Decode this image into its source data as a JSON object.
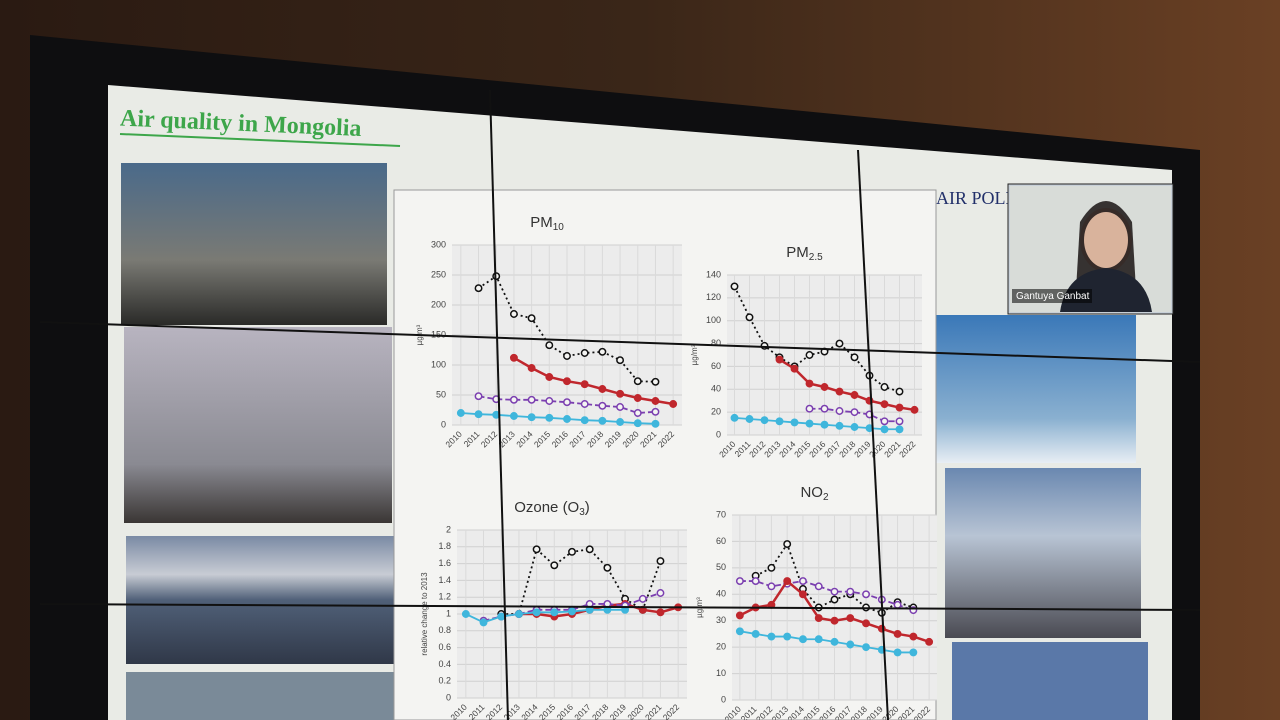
{
  "slide": {
    "title": "Air quality in Mongolia",
    "side_title": "AIR POLL",
    "speaker": "Gantuya Ganbat"
  },
  "chart_data": [
    {
      "type": "line",
      "title": "PM",
      "title_sub": "10",
      "y_label": "µg/m³",
      "categories": [
        "2010",
        "2011",
        "2012",
        "2013",
        "2014",
        "2015",
        "2016",
        "2017",
        "2018",
        "2019",
        "2020",
        "2021",
        "2022"
      ],
      "ylim": [
        0,
        300
      ],
      "yticks": [
        0,
        50,
        100,
        150,
        200,
        250,
        300
      ],
      "grid": true,
      "series": [
        {
          "color": "#111111",
          "dash": "dotted",
          "values": [
            null,
            228,
            248,
            185,
            178,
            133,
            115,
            120,
            122,
            108,
            73,
            72,
            null
          ]
        },
        {
          "color": "#c0272d",
          "dash": "solid",
          "values": [
            null,
            null,
            null,
            112,
            95,
            80,
            73,
            68,
            60,
            52,
            45,
            40,
            35
          ]
        },
        {
          "color": "#7b3fb0",
          "dash": "dashed",
          "values": [
            null,
            48,
            43,
            42,
            42,
            40,
            38,
            35,
            32,
            30,
            20,
            22,
            null
          ]
        },
        {
          "color": "#3fb6dc",
          "dash": "solid",
          "values": [
            20,
            18,
            17,
            15,
            13,
            12,
            10,
            8,
            7,
            5,
            3,
            2,
            null
          ]
        }
      ]
    },
    {
      "type": "line",
      "title": "PM",
      "title_sub": "2.5",
      "y_label": "µg/m³",
      "categories": [
        "2010",
        "2011",
        "2012",
        "2013",
        "2014",
        "2015",
        "2016",
        "2017",
        "2018",
        "2019",
        "2020",
        "2021",
        "2022"
      ],
      "ylim": [
        0,
        140
      ],
      "yticks": [
        0,
        20,
        40,
        60,
        80,
        100,
        120,
        140
      ],
      "grid": true,
      "series": [
        {
          "color": "#111111",
          "dash": "dotted",
          "values": [
            130,
            103,
            78,
            68,
            60,
            70,
            73,
            80,
            68,
            52,
            42,
            38,
            null
          ]
        },
        {
          "color": "#c0272d",
          "dash": "solid",
          "values": [
            null,
            null,
            null,
            66,
            58,
            45,
            42,
            38,
            35,
            30,
            27,
            24,
            22
          ]
        },
        {
          "color": "#7b3fb0",
          "dash": "dashed",
          "values": [
            null,
            null,
            null,
            null,
            null,
            23,
            23,
            21,
            20,
            18,
            12,
            12,
            null
          ]
        },
        {
          "color": "#3fb6dc",
          "dash": "solid",
          "values": [
            15,
            14,
            13,
            12,
            11,
            10,
            9,
            8,
            7,
            6,
            5,
            5,
            null
          ]
        }
      ]
    },
    {
      "type": "line",
      "title": "Ozone (O",
      "title_sub": "3",
      "title_end": ")",
      "y_label": "relative change to 2013",
      "categories": [
        "2010",
        "2011",
        "2012",
        "2013",
        "2014",
        "2015",
        "2016",
        "2017",
        "2018",
        "2019",
        "2020",
        "2021",
        "2022"
      ],
      "ylim": [
        0,
        2
      ],
      "yticks": [
        0,
        0.2,
        0.4,
        0.6,
        0.8,
        1,
        1.2,
        1.4,
        1.6,
        1.8,
        2
      ],
      "grid": true,
      "series": [
        {
          "color": "#111111",
          "dash": "dotted",
          "values": [
            null,
            null,
            1.0,
            1.0,
            1.77,
            1.58,
            1.74,
            1.77,
            1.55,
            1.18,
            1.05,
            1.63,
            null
          ]
        },
        {
          "color": "#c0272d",
          "dash": "solid",
          "values": [
            null,
            null,
            null,
            1.0,
            1.0,
            0.97,
            1.0,
            1.05,
            1.1,
            1.12,
            1.05,
            1.02,
            1.08
          ]
        },
        {
          "color": "#7b3fb0",
          "dash": "dashed",
          "values": [
            null,
            0.92,
            0.97,
            1.0,
            1.05,
            1.05,
            1.05,
            1.12,
            1.12,
            1.1,
            1.18,
            1.25,
            null
          ]
        },
        {
          "color": "#3fb6dc",
          "dash": "solid",
          "values": [
            1.0,
            0.9,
            0.97,
            1.0,
            1.02,
            1.02,
            1.03,
            1.05,
            1.05,
            1.05,
            null,
            null,
            null
          ]
        }
      ]
    },
    {
      "type": "line",
      "title": "NO",
      "title_sub": "2",
      "y_label": "µg/m³",
      "categories": [
        "2010",
        "2011",
        "2012",
        "2013",
        "2014",
        "2015",
        "2016",
        "2017",
        "2018",
        "2019",
        "2020",
        "2021",
        "2022"
      ],
      "ylim": [
        0,
        70
      ],
      "yticks": [
        0,
        10,
        20,
        30,
        40,
        50,
        60,
        70
      ],
      "grid": true,
      "series": [
        {
          "color": "#111111",
          "dash": "dotted",
          "values": [
            null,
            47,
            50,
            59,
            42,
            35,
            38,
            40,
            35,
            33,
            37,
            35,
            null
          ]
        },
        {
          "color": "#7b3fb0",
          "dash": "dashed",
          "values": [
            45,
            45,
            43,
            44,
            45,
            43,
            41,
            41,
            40,
            38,
            36,
            34,
            null
          ]
        },
        {
          "color": "#c0272d",
          "dash": "solid",
          "values": [
            32,
            35,
            36,
            45,
            40,
            31,
            30,
            31,
            29,
            27,
            25,
            24,
            22
          ]
        },
        {
          "color": "#3fb6dc",
          "dash": "solid",
          "values": [
            26,
            25,
            24,
            24,
            23,
            23,
            22,
            21,
            20,
            19,
            18,
            18,
            null
          ]
        }
      ]
    }
  ]
}
